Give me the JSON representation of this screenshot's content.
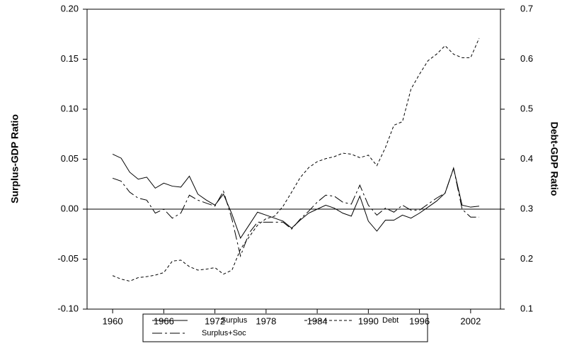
{
  "chart_data": {
    "type": "line",
    "y_label": "Surplus-GDP Ratio",
    "y2_label": "Debt-GDP Ratio",
    "x": [
      1960,
      1961,
      1962,
      1963,
      1964,
      1965,
      1966,
      1967,
      1968,
      1969,
      1970,
      1971,
      1972,
      1973,
      1974,
      1975,
      1976,
      1977,
      1978,
      1979,
      1980,
      1981,
      1982,
      1983,
      1984,
      1985,
      1986,
      1987,
      1988,
      1989,
      1990,
      1991,
      1992,
      1993,
      1994,
      1995,
      1996,
      1997,
      1998,
      1999,
      2000,
      2001,
      2002,
      2003
    ],
    "xlim": [
      1957,
      2005.5
    ],
    "xticks": [
      1960,
      1966,
      1972,
      1978,
      1984,
      1990,
      1996,
      2002
    ],
    "ylim": [
      -0.1,
      0.2
    ],
    "yticks": [
      {
        "value": -0.1,
        "label": "-0.10"
      },
      -0.05,
      {
        "value": 0,
        "label": "0.00"
      },
      0.05,
      {
        "value": 0.1,
        "label": "0.10"
      },
      0.15,
      {
        "value": 0.2,
        "label": "0.20"
      }
    ],
    "y2lim": [
      0.1,
      0.7
    ],
    "y2ticks": [
      0.1,
      0.2,
      0.3,
      0.4,
      0.5,
      0.6,
      0.7
    ],
    "hline": 0,
    "series": [
      {
        "name": "Surplus",
        "color": "#000000",
        "line_style": "solid",
        "values": [
          0.055,
          0.051,
          0.037,
          0.03,
          0.032,
          0.021,
          0.026,
          0.023,
          0.022,
          0.033,
          0.015,
          0.009,
          0.004,
          0.015,
          -0.005,
          -0.029,
          -0.016,
          -0.003,
          -0.006,
          -0.009,
          -0.012,
          -0.019,
          -0.011,
          -0.004,
          0.0,
          0.004,
          0.001,
          -0.004,
          -0.007,
          0.013,
          -0.012,
          -0.022,
          -0.011,
          -0.011,
          -0.006,
          -0.009,
          -0.004,
          0.002,
          0.008,
          0.016,
          0.041,
          0.004,
          0.002,
          0.003
        ]
      },
      {
        "name": "Debt",
        "color": "#000000",
        "line_style": "short-dash",
        "axis": "y2",
        "values": [
          0.167,
          0.16,
          0.156,
          0.163,
          0.165,
          0.168,
          0.173,
          0.196,
          0.198,
          0.185,
          0.178,
          0.18,
          0.183,
          0.17,
          0.178,
          0.22,
          0.244,
          0.268,
          0.281,
          0.286,
          0.306,
          0.334,
          0.363,
          0.383,
          0.395,
          0.401,
          0.405,
          0.412,
          0.41,
          0.403,
          0.408,
          0.387,
          0.423,
          0.468,
          0.475,
          0.54,
          0.57,
          0.597,
          0.61,
          0.627,
          0.61,
          0.603,
          0.603,
          0.642
        ]
      },
      {
        "name": "Surplus+Soc",
        "color": "#000000",
        "line_style": "long-dash",
        "values": [
          0.031,
          0.028,
          0.017,
          0.011,
          0.009,
          -0.004,
          0.0,
          -0.009,
          -0.004,
          0.014,
          0.009,
          0.006,
          0.003,
          0.018,
          -0.01,
          -0.047,
          -0.024,
          -0.013,
          -0.013,
          -0.013,
          -0.013,
          -0.02,
          -0.01,
          -0.002,
          0.007,
          0.014,
          0.013,
          0.007,
          0.005,
          0.024,
          0.004,
          -0.006,
          0.001,
          -0.003,
          0.004,
          -0.001,
          -0.001,
          0.005,
          0.011,
          0.016,
          0.041,
          0.0,
          -0.008,
          -0.008
        ]
      }
    ]
  }
}
